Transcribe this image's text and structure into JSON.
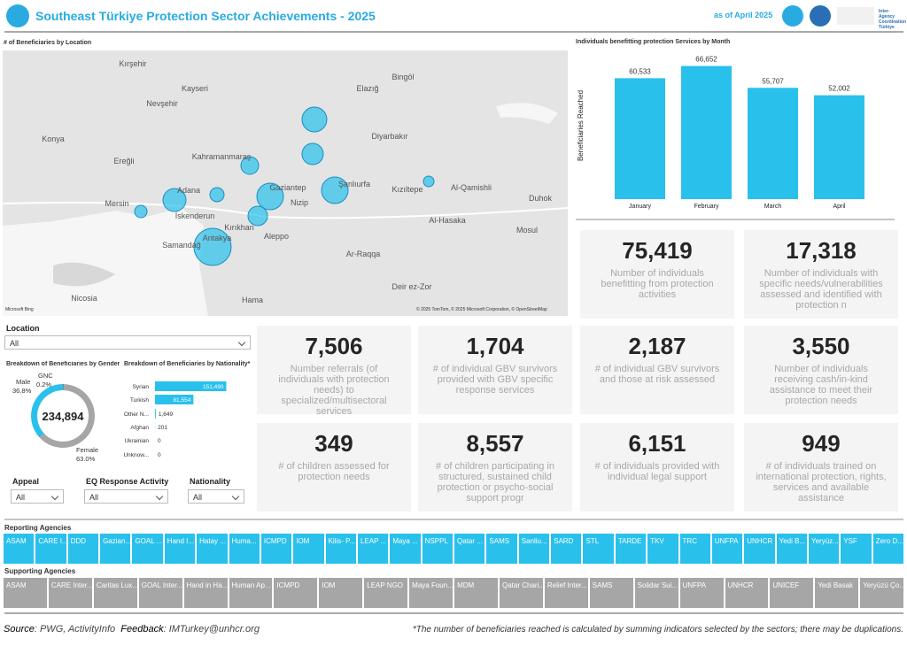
{
  "header": {
    "title": "Southeast Türkiye Protection Sector Achievements - 2025",
    "date": "as of April 2025",
    "org": "Inter-Agency Coordination Türkiye"
  },
  "map": {
    "title": "# of Beneficiaries by Location",
    "labels": [
      "Kırşehir",
      "Kayseri",
      "Nevşehir",
      "Elazığ",
      "Bingöl",
      "Diyarbakır",
      "Konya",
      "Ereğli",
      "Kahramanmaraş",
      "Adana",
      "Mersin",
      "İskenderun",
      "Kırıkhan",
      "Gaziantep",
      "Şanlıurfa",
      "Nizip",
      "Kızıltepe",
      "Al-Qamishli",
      "Duhok",
      "Al-Hasaka",
      "Mosul",
      "Aleppo",
      "Ar-Raqqa",
      "Deir ez-Zor",
      "Hama",
      "Nicosia",
      "Antakya",
      "Samandağ"
    ],
    "attribution": "© 2025 TomTom, © 2025 Microsoft Corporation, © OpenStreetMap",
    "brand": "Microsoft Bing"
  },
  "chart_data": [
    {
      "type": "bar",
      "title": "Individuals benefitting protection Services by Month",
      "y_label": "Beneficiaries Reached",
      "categories": [
        "January",
        "February",
        "March",
        "April"
      ],
      "values": [
        60533,
        66652,
        55707,
        52002
      ],
      "value_labels": [
        "60,533",
        "66,652",
        "55,707",
        "52,002"
      ],
      "color": "#29c0ec",
      "ylim": [
        0,
        70000
      ]
    },
    {
      "type": "pie",
      "title": "Breakdown of Beneficiaries by Gender",
      "categories": [
        "Male",
        "GNC",
        "Female"
      ],
      "values": [
        36.8,
        0.2,
        63.0
      ],
      "value_labels": [
        "36.8%",
        "0.2%",
        "63.0%"
      ],
      "colors": [
        "#29c0ec",
        "#333333",
        "#a6a6a6"
      ],
      "center_label": "234,894"
    },
    {
      "type": "bar",
      "orientation": "horizontal",
      "title": "Breakdown of Beneficiaries by Nationality*",
      "categories": [
        "Syrian",
        "Turkish",
        "Other N...",
        "Afghan",
        "Ukrainian",
        "Unknow..."
      ],
      "values": [
        151490,
        81554,
        1649,
        201,
        0,
        0
      ],
      "value_labels": [
        "151,490",
        "81,554",
        "1,649",
        "201",
        "0",
        "0"
      ],
      "color": "#29c0ec",
      "xlim": [
        0,
        160000
      ]
    }
  ],
  "filters": [
    {
      "label": "Location",
      "value": "All"
    },
    {
      "label": "Appeal",
      "value": "All"
    },
    {
      "label": "EQ Response Activity",
      "value": "All"
    },
    {
      "label": "Nationality",
      "value": "All"
    }
  ],
  "kpis": [
    {
      "value": "75,419",
      "label": "Number of individuals benefitting from protection activities"
    },
    {
      "value": "17,318",
      "label": "Number of individuals with specific needs/vulnerabilities assessed and identified with protection n"
    },
    {
      "value": "7,506",
      "label": "Number referrals (of individuals with protection needs) to specialized/multisectoral services"
    },
    {
      "value": "1,704",
      "label": "# of individual GBV survivors provided with GBV specific response services"
    },
    {
      "value": "2,187",
      "label": "# of individual GBV survivors and those at risk assessed"
    },
    {
      "value": "3,550",
      "label": "Number of individuals receiving cash/in-kind assistance to meet their protection needs"
    },
    {
      "value": "349",
      "label": "# of children assessed for protection needs"
    },
    {
      "value": "8,557",
      "label": "# of children participating in structured, sustained child protection or psycho-social support progr"
    },
    {
      "value": "6,151",
      "label": "# of individuals provided with individual legal support"
    },
    {
      "value": "949",
      "label": "# of individuals trained on international protection, rights, services and available assistance"
    }
  ],
  "reporting_agencies": {
    "title": "Reporting Agencies",
    "items": [
      "ASAM",
      "CARE I...",
      "DDD",
      "Gazian...",
      "GOAL ...",
      "Hand I...",
      "Hatay ...",
      "Huma...",
      "ICMPD",
      "IOM",
      "Kilis- P...",
      "LEAP ...",
      "Maya ...",
      "NSPPL",
      "Qatar ...",
      "SAMS",
      "Sanliu...",
      "SARD",
      "STL",
      "TARDE",
      "TKV",
      "TRC",
      "UNFPA",
      "UNHCR",
      "Yedi B...",
      "Yeryüz...",
      "YSF",
      "Zero D..."
    ]
  },
  "supporting_agencies": {
    "title": "Supporting Agencies",
    "items": [
      "ASAM",
      "CARE Inter...",
      "Caritas Lux...",
      "GOAL Inter...",
      "Hand in Ha...",
      "Human Ap...",
      "ICMPD",
      "IOM",
      "LEAP NGO",
      "Maya Foun...",
      "MDM",
      "Qatar Chari...",
      "Relief Inter...",
      "SAMS",
      "Solidar Sui...",
      "UNFPA",
      "UNHCR",
      "UNICEF",
      "Yedi Basak",
      "Yeryüzü Ço..."
    ]
  },
  "footer": {
    "source_label": "Source",
    "source": ": PWG, ActivityInfo",
    "feedback_label": "Feedback",
    "feedback": ": IMTurkey@unhcr.org",
    "note": "*The number of beneficiaries reached is calculated by summing indicators selected by the sectors; there may be duplications."
  }
}
